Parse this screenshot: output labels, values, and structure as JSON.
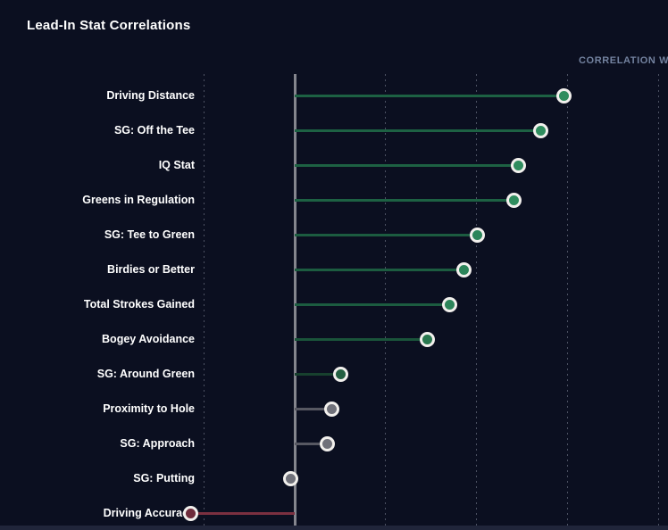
{
  "page": {
    "title": "Lead-In Stat Correlations",
    "axis_header": "CORRELATION W",
    "background_color": "#0b0f20",
    "bottom_strip_color": "#20253a",
    "zero_axis_color": "#84858d",
    "gridline_color": "#4d5263",
    "label_color": "#ffffff",
    "axis_header_color": "#73829f",
    "dot_ring_color": "#f2f0ed"
  },
  "chart_data": {
    "type": "bar",
    "style": "horizontal-lollipop",
    "title": "Lead-In Stat Correlations",
    "xlabel": "CORRELATION W",
    "ylabel": "",
    "categories": [
      "Driving Distance",
      "SG: Off the Tee",
      "IQ Stat",
      "Greens in Regulation",
      "SG: Tee to Green",
      "Birdies or Better",
      "Total Strokes Gained",
      "Bogey Avoidance",
      "SG: Around Green",
      "Proximity to Hole",
      "SG: Approach",
      "SG: Putting",
      "Driving Accuracy"
    ],
    "values": [
      0.59,
      0.54,
      0.49,
      0.48,
      0.4,
      0.37,
      0.34,
      0.29,
      0.1,
      0.08,
      0.07,
      -0.01,
      -0.23
    ],
    "xlim": [
      -0.2,
      0.82
    ],
    "gridline_interval": 0.2,
    "grid": "vertical-dotted",
    "zero_axis": true,
    "legend": "none",
    "series_colors": [
      {
        "dot": "#2f8d5e",
        "line": "#1d6143"
      },
      {
        "dot": "#2f8d5e",
        "line": "#1d6143"
      },
      {
        "dot": "#2f8d5e",
        "line": "#1d6143"
      },
      {
        "dot": "#2f8d5e",
        "line": "#1d6143"
      },
      {
        "dot": "#2c855a",
        "line": "#1c5c40"
      },
      {
        "dot": "#2c855a",
        "line": "#1c5c40"
      },
      {
        "dot": "#2c855a",
        "line": "#1c5c40"
      },
      {
        "dot": "#29784f",
        "line": "#1a543a"
      },
      {
        "dot": "#235f41",
        "line": "#17402e"
      },
      {
        "dot": "#70717a",
        "line": "#575862"
      },
      {
        "dot": "#70717a",
        "line": "#575862"
      },
      {
        "dot": "#70717a",
        "line": "#575862"
      },
      {
        "dot": "#6e2b3b",
        "line": "#7b3040"
      }
    ]
  }
}
